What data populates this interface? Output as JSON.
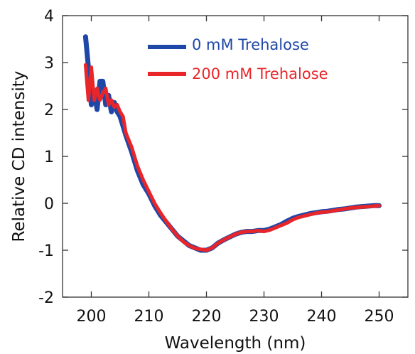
{
  "chart_data": {
    "type": "line",
    "title": "",
    "xlabel": "Wavelength (nm)",
    "ylabel": "Relative CD intensity",
    "xlim": [
      195,
      255
    ],
    "ylim": [
      -2,
      4
    ],
    "x_ticks": [
      200,
      210,
      220,
      230,
      240,
      250
    ],
    "y_ticks": [
      -2,
      -1,
      0,
      1,
      2,
      3,
      4
    ],
    "x_tick_labels": [
      "200",
      "210",
      "220",
      "230",
      "240",
      "250"
    ],
    "y_tick_labels": [
      "-2",
      "-1",
      "0",
      "1",
      "2",
      "3",
      "4"
    ],
    "grid": false,
    "legend_position": "top-right",
    "series": [
      {
        "name": "0 mM Trehalose",
        "color": "#1f47a8",
        "x": [
          199,
          199.5,
          200,
          200.5,
          201,
          201.5,
          202,
          202.5,
          203,
          203.5,
          204,
          204.5,
          205,
          206,
          207,
          208,
          209,
          210,
          211,
          212,
          213,
          214,
          215,
          216,
          217,
          218,
          219,
          220,
          221,
          222,
          223,
          224,
          225,
          226,
          227,
          228,
          229,
          230,
          231,
          232,
          233,
          234,
          235,
          236,
          237,
          238,
          239,
          240,
          241,
          242,
          243,
          244,
          245,
          246,
          247,
          248,
          249,
          250
        ],
        "y": [
          3.55,
          2.9,
          2.1,
          2.4,
          2.0,
          2.6,
          2.6,
          2.1,
          2.3,
          1.95,
          2.15,
          1.95,
          1.85,
          1.45,
          1.1,
          0.7,
          0.4,
          0.2,
          -0.05,
          -0.25,
          -0.4,
          -0.55,
          -0.7,
          -0.8,
          -0.9,
          -0.95,
          -1.0,
          -1.0,
          -0.95,
          -0.85,
          -0.78,
          -0.72,
          -0.66,
          -0.62,
          -0.6,
          -0.6,
          -0.58,
          -0.58,
          -0.55,
          -0.5,
          -0.45,
          -0.38,
          -0.32,
          -0.28,
          -0.25,
          -0.22,
          -0.2,
          -0.18,
          -0.17,
          -0.15,
          -0.13,
          -0.12,
          -0.1,
          -0.08,
          -0.07,
          -0.06,
          -0.05,
          -0.05
        ]
      },
      {
        "name": "200 mM Trehalose",
        "color": "#e8262a",
        "x": [
          199,
          199.5,
          200,
          200.5,
          201,
          201.5,
          202,
          202.5,
          203,
          203.5,
          204,
          204.5,
          205,
          205.5,
          206,
          207,
          208,
          209,
          210,
          211,
          212,
          213,
          214,
          215,
          216,
          217,
          218,
          219,
          220,
          221,
          222,
          223,
          224,
          225,
          226,
          227,
          228,
          229,
          230,
          231,
          232,
          233,
          234,
          235,
          236,
          237,
          238,
          239,
          240,
          241,
          242,
          243,
          244,
          245,
          246,
          247,
          248,
          249,
          250
        ],
        "y": [
          2.95,
          2.2,
          2.9,
          2.2,
          2.45,
          2.2,
          2.35,
          2.45,
          2.1,
          2.2,
          2.05,
          2.1,
          1.95,
          1.85,
          1.5,
          1.2,
          0.8,
          0.5,
          0.25,
          0.0,
          -0.2,
          -0.38,
          -0.55,
          -0.7,
          -0.82,
          -0.9,
          -0.96,
          -0.98,
          -1.0,
          -0.95,
          -0.85,
          -0.78,
          -0.72,
          -0.66,
          -0.62,
          -0.6,
          -0.6,
          -0.58,
          -0.6,
          -0.57,
          -0.52,
          -0.47,
          -0.42,
          -0.35,
          -0.3,
          -0.27,
          -0.24,
          -0.21,
          -0.19,
          -0.18,
          -0.16,
          -0.14,
          -0.12,
          -0.1,
          -0.09,
          -0.08,
          -0.07,
          -0.06,
          -0.05
        ]
      }
    ]
  }
}
